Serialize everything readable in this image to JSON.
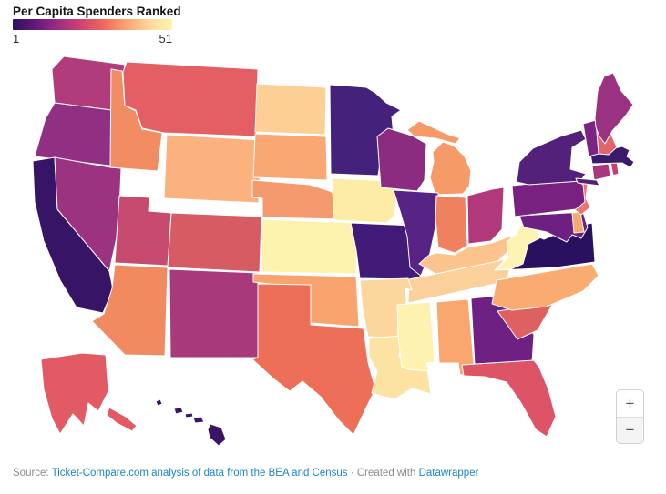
{
  "header": {
    "title": "Per Capita Spenders Ranked"
  },
  "legend": {
    "min_label": "1",
    "max_label": "51",
    "gradient": [
      "#2b115e",
      "#63197f",
      "#9d2e7f",
      "#ce4371",
      "#f0695c",
      "#faa471",
      "#fcd79c",
      "#fdf5ae"
    ]
  },
  "controls": {
    "zoom_in": "+",
    "zoom_out": "−"
  },
  "footer": {
    "source_prefix": "Source:",
    "source_link": "Ticket-Compare.com analysis of data from the BEA and Census",
    "separator": "·",
    "created_with": "Created with",
    "tool_link": "Datawrapper"
  },
  "chart_data": {
    "type": "choropleth-map",
    "title": "Per Capita Spenders Ranked",
    "legend_scale": {
      "min": 1,
      "max": 51,
      "note": "rank scale: dark purple = 1, pale yellow = 51"
    },
    "states": [
      {
        "id": "WA",
        "name": "Washington",
        "color": "#b13c7c"
      },
      {
        "id": "OR",
        "name": "Oregon",
        "color": "#913082"
      },
      {
        "id": "CA",
        "name": "California",
        "color": "#371465"
      },
      {
        "id": "NV",
        "name": "Nevada",
        "color": "#9b3381"
      },
      {
        "id": "ID",
        "name": "Idaho",
        "color": "#f28c63"
      },
      {
        "id": "MT",
        "name": "Montana",
        "color": "#e35f63"
      },
      {
        "id": "WY",
        "name": "Wyoming",
        "color": "#fbb27e"
      },
      {
        "id": "UT",
        "name": "Utah",
        "color": "#c64a6e"
      },
      {
        "id": "CO",
        "name": "Colorado",
        "color": "#d65b63"
      },
      {
        "id": "AZ",
        "name": "Arizona",
        "color": "#f28a60"
      },
      {
        "id": "NM",
        "name": "New Mexico",
        "color": "#a83a7c"
      },
      {
        "id": "ND",
        "name": "North Dakota",
        "color": "#fccf95"
      },
      {
        "id": "SD",
        "name": "South Dakota",
        "color": "#faa873"
      },
      {
        "id": "NE",
        "name": "Nebraska",
        "color": "#f59a6e"
      },
      {
        "id": "KS",
        "name": "Kansas",
        "color": "#fdf3ae"
      },
      {
        "id": "OK",
        "name": "Oklahoma",
        "color": "#f9a46e"
      },
      {
        "id": "TX",
        "name": "Texas",
        "color": "#ee6f58"
      },
      {
        "id": "MN",
        "name": "Minnesota",
        "color": "#44217b"
      },
      {
        "id": "IA",
        "name": "Iowa",
        "color": "#fdeca6"
      },
      {
        "id": "MO",
        "name": "Missouri",
        "color": "#421a78"
      },
      {
        "id": "WI",
        "name": "Wisconsin",
        "color": "#8c2c81"
      },
      {
        "id": "MI",
        "name": "Michigan",
        "color": "#f69a68"
      },
      {
        "id": "IL",
        "name": "Illinois",
        "color": "#572384"
      },
      {
        "id": "IN",
        "name": "Indiana",
        "color": "#f0815f"
      },
      {
        "id": "OH",
        "name": "Ohio",
        "color": "#b1397b"
      },
      {
        "id": "KY",
        "name": "Kentucky",
        "color": "#fcc48c"
      },
      {
        "id": "TN",
        "name": "Tennessee",
        "color": "#fbd09a"
      },
      {
        "id": "AR",
        "name": "Arkansas",
        "color": "#fbd79e"
      },
      {
        "id": "LA",
        "name": "Louisiana",
        "color": "#fce3a4"
      },
      {
        "id": "MS",
        "name": "Mississippi",
        "color": "#fdf2b0"
      },
      {
        "id": "AL",
        "name": "Alabama",
        "color": "#f9a76e"
      },
      {
        "id": "GA",
        "name": "Georgia",
        "color": "#6f2183"
      },
      {
        "id": "FL",
        "name": "Florida",
        "color": "#dd5467"
      },
      {
        "id": "SC",
        "name": "South Carolina",
        "color": "#df6060"
      },
      {
        "id": "NC",
        "name": "North Carolina",
        "color": "#f9ab72"
      },
      {
        "id": "VA",
        "name": "Virginia",
        "color": "#291160"
      },
      {
        "id": "WV",
        "name": "West Virginia",
        "color": "#fdf3b2"
      },
      {
        "id": "MD",
        "name": "Maryland",
        "color": "#6e2082"
      },
      {
        "id": "DE",
        "name": "Delaware",
        "color": "#f9a76e"
      },
      {
        "id": "NJ",
        "name": "New Jersey",
        "color": "#ee756e"
      },
      {
        "id": "PA",
        "name": "Pennsylvania",
        "color": "#782181"
      },
      {
        "id": "NY",
        "name": "New York",
        "color": "#532179"
      },
      {
        "id": "CT",
        "name": "Connecticut",
        "color": "#aa3680"
      },
      {
        "id": "RI",
        "name": "Rhode Island",
        "color": "#c4416f"
      },
      {
        "id": "MA",
        "name": "Massachusetts",
        "color": "#3b1a6e"
      },
      {
        "id": "VT",
        "name": "Vermont",
        "color": "#7c2483"
      },
      {
        "id": "NH",
        "name": "New Hampshire",
        "color": "#e4646c"
      },
      {
        "id": "ME",
        "name": "Maine",
        "color": "#9b3181"
      },
      {
        "id": "AK",
        "name": "Alaska",
        "color": "#e25a63"
      },
      {
        "id": "HI",
        "name": "Hawaii",
        "color": "#3a1566"
      }
    ]
  }
}
